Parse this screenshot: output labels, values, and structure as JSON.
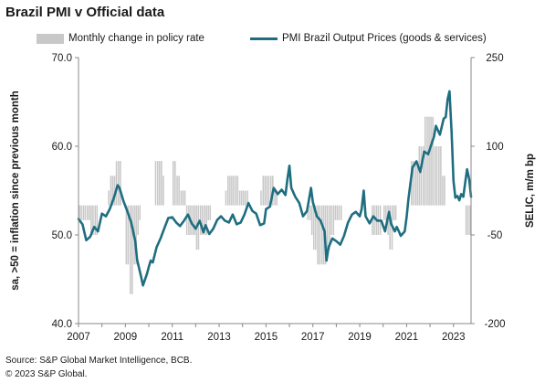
{
  "chart_data": {
    "type": "line",
    "title": "Brazil PMI v Official data",
    "legend": {
      "bars_label": "Monthly change in policy rate",
      "line_label": "PMI Brazil Output Prices (goods & services)"
    },
    "ylabel_left": "sa, >50 = inflation since previous month",
    "ylabel_right": "SELIC, m/m bp",
    "x_range": [
      2007.0,
      2023.75
    ],
    "x_ticks": [
      "2007",
      "2009",
      "2011",
      "2013",
      "2015",
      "2017",
      "2019",
      "2021",
      "2023"
    ],
    "ylim_left": [
      40,
      70
    ],
    "yticks_left": [
      "40.0",
      "50.0",
      "60.0",
      "70.0"
    ],
    "ylim_right": [
      -200,
      250
    ],
    "yticks_right": [
      "-200",
      "-50",
      "100",
      "250"
    ],
    "colors": {
      "line": "#1f6e80",
      "bars": "#c8c8c8",
      "axis": "#888888"
    },
    "line_series": {
      "name": "PMI Brazil Output Prices (goods & services)",
      "points": [
        [
          2007.0,
          51.8
        ],
        [
          2007.17,
          51.2
        ],
        [
          2007.33,
          49.4
        ],
        [
          2007.5,
          49.8
        ],
        [
          2007.67,
          50.9
        ],
        [
          2007.83,
          50.4
        ],
        [
          2008.0,
          52.4
        ],
        [
          2008.17,
          52.1
        ],
        [
          2008.33,
          52.9
        ],
        [
          2008.5,
          54.1
        ],
        [
          2008.67,
          55.6
        ],
        [
          2008.75,
          55.3
        ],
        [
          2008.92,
          53.8
        ],
        [
          2009.08,
          52.7
        ],
        [
          2009.25,
          51.4
        ],
        [
          2009.42,
          49.3
        ],
        [
          2009.5,
          47.2
        ],
        [
          2009.67,
          45.3
        ],
        [
          2009.75,
          44.3
        ],
        [
          2009.92,
          45.6
        ],
        [
          2010.0,
          46.4
        ],
        [
          2010.08,
          47.1
        ],
        [
          2010.17,
          46.9
        ],
        [
          2010.33,
          48.6
        ],
        [
          2010.5,
          49.6
        ],
        [
          2010.67,
          50.8
        ],
        [
          2010.83,
          51.9
        ],
        [
          2011.0,
          52.0
        ],
        [
          2011.17,
          51.4
        ],
        [
          2011.33,
          51.0
        ],
        [
          2011.5,
          51.6
        ],
        [
          2011.67,
          52.3
        ],
        [
          2011.83,
          51.3
        ],
        [
          2012.0,
          50.7
        ],
        [
          2012.17,
          51.6
        ],
        [
          2012.33,
          50.3
        ],
        [
          2012.42,
          51.1
        ],
        [
          2012.58,
          50.1
        ],
        [
          2012.75,
          50.7
        ],
        [
          2012.92,
          51.7
        ],
        [
          2013.08,
          52.1
        ],
        [
          2013.25,
          51.6
        ],
        [
          2013.42,
          51.4
        ],
        [
          2013.58,
          52.3
        ],
        [
          2013.75,
          51.2
        ],
        [
          2013.92,
          51.4
        ],
        [
          2014.08,
          52.3
        ],
        [
          2014.25,
          53.6
        ],
        [
          2014.42,
          52.7
        ],
        [
          2014.58,
          52.4
        ],
        [
          2014.75,
          51.1
        ],
        [
          2014.92,
          51.3
        ],
        [
          2015.0,
          52.9
        ],
        [
          2015.17,
          53.2
        ],
        [
          2015.33,
          55.3
        ],
        [
          2015.5,
          54.6
        ],
        [
          2015.67,
          55.1
        ],
        [
          2015.83,
          54.5
        ],
        [
          2015.92,
          56.4
        ],
        [
          2016.0,
          57.8
        ],
        [
          2016.08,
          55.3
        ],
        [
          2016.25,
          54.3
        ],
        [
          2016.42,
          53.6
        ],
        [
          2016.58,
          52.1
        ],
        [
          2016.75,
          52.7
        ],
        [
          2016.92,
          55.3
        ],
        [
          2017.0,
          53.7
        ],
        [
          2017.17,
          52.1
        ],
        [
          2017.33,
          51.6
        ],
        [
          2017.5,
          50.4
        ],
        [
          2017.58,
          47.1
        ],
        [
          2017.67,
          48.6
        ],
        [
          2017.83,
          49.6
        ],
        [
          2018.0,
          49.3
        ],
        [
          2018.17,
          48.9
        ],
        [
          2018.33,
          49.9
        ],
        [
          2018.5,
          51.4
        ],
        [
          2018.67,
          52.3
        ],
        [
          2018.83,
          52.6
        ],
        [
          2019.0,
          52.1
        ],
        [
          2019.08,
          52.9
        ],
        [
          2019.17,
          55.0
        ],
        [
          2019.25,
          52.1
        ],
        [
          2019.42,
          51.3
        ],
        [
          2019.58,
          52.1
        ],
        [
          2019.75,
          51.6
        ],
        [
          2019.92,
          51.6
        ],
        [
          2020.08,
          50.4
        ],
        [
          2020.25,
          52.6
        ],
        [
          2020.33,
          51.3
        ],
        [
          2020.5,
          50.4
        ],
        [
          2020.58,
          50.9
        ],
        [
          2020.67,
          50.4
        ],
        [
          2020.75,
          49.9
        ],
        [
          2020.92,
          50.4
        ],
        [
          2021.0,
          52.0
        ],
        [
          2021.08,
          54.1
        ],
        [
          2021.25,
          57.6
        ],
        [
          2021.42,
          58.3
        ],
        [
          2021.58,
          57.1
        ],
        [
          2021.75,
          59.4
        ],
        [
          2021.92,
          59.1
        ],
        [
          2022.08,
          60.4
        ],
        [
          2022.17,
          61.1
        ],
        [
          2022.25,
          62.3
        ],
        [
          2022.42,
          61.3
        ],
        [
          2022.58,
          63.1
        ],
        [
          2022.67,
          63.3
        ],
        [
          2022.75,
          65.3
        ],
        [
          2022.83,
          66.2
        ],
        [
          2022.92,
          61.6
        ],
        [
          2023.0,
          56.1
        ],
        [
          2023.08,
          54.2
        ],
        [
          2023.17,
          54.4
        ],
        [
          2023.25,
          53.9
        ],
        [
          2023.33,
          54.6
        ],
        [
          2023.42,
          54.3
        ],
        [
          2023.5,
          55.9
        ],
        [
          2023.58,
          57.4
        ],
        [
          2023.67,
          56.3
        ],
        [
          2023.75,
          54.3
        ]
      ]
    },
    "bar_series": {
      "name": "Monthly change in policy rate",
      "points": [
        [
          2007.04,
          -25
        ],
        [
          2007.12,
          -25
        ],
        [
          2007.21,
          -25
        ],
        [
          2007.29,
          -25
        ],
        [
          2007.38,
          -25
        ],
        [
          2007.46,
          -25
        ],
        [
          2007.54,
          -50
        ],
        [
          2007.62,
          -50
        ],
        [
          2007.71,
          -50
        ],
        [
          2007.79,
          -50
        ],
        [
          2008.29,
          25
        ],
        [
          2008.38,
          50
        ],
        [
          2008.46,
          50
        ],
        [
          2008.54,
          50
        ],
        [
          2008.62,
          75
        ],
        [
          2008.71,
          75
        ],
        [
          2008.79,
          75
        ],
        [
          2009.04,
          -100
        ],
        [
          2009.12,
          -100
        ],
        [
          2009.21,
          -150
        ],
        [
          2009.29,
          -150
        ],
        [
          2009.38,
          -100
        ],
        [
          2009.46,
          -100
        ],
        [
          2009.54,
          -50
        ],
        [
          2009.62,
          -25
        ],
        [
          2010.29,
          75
        ],
        [
          2010.38,
          75
        ],
        [
          2010.46,
          75
        ],
        [
          2010.54,
          75
        ],
        [
          2010.62,
          50
        ],
        [
          2011.04,
          75
        ],
        [
          2011.12,
          75
        ],
        [
          2011.21,
          50
        ],
        [
          2011.29,
          50
        ],
        [
          2011.38,
          25
        ],
        [
          2011.46,
          25
        ],
        [
          2011.54,
          25
        ],
        [
          2011.62,
          -50
        ],
        [
          2011.71,
          -50
        ],
        [
          2011.79,
          -50
        ],
        [
          2011.88,
          -50
        ],
        [
          2011.96,
          -50
        ],
        [
          2012.04,
          -75
        ],
        [
          2012.12,
          -75
        ],
        [
          2012.21,
          -50
        ],
        [
          2012.29,
          -50
        ],
        [
          2012.38,
          -50
        ],
        [
          2012.46,
          -50
        ],
        [
          2012.54,
          -25
        ],
        [
          2012.62,
          -25
        ],
        [
          2013.29,
          25
        ],
        [
          2013.38,
          50
        ],
        [
          2013.46,
          50
        ],
        [
          2013.54,
          50
        ],
        [
          2013.62,
          50
        ],
        [
          2013.71,
          50
        ],
        [
          2013.79,
          50
        ],
        [
          2013.88,
          25
        ],
        [
          2013.96,
          25
        ],
        [
          2014.04,
          25
        ],
        [
          2014.12,
          25
        ],
        [
          2014.21,
          25
        ],
        [
          2014.79,
          25
        ],
        [
          2014.88,
          50
        ],
        [
          2014.96,
          50
        ],
        [
          2015.04,
          50
        ],
        [
          2015.12,
          50
        ],
        [
          2015.21,
          50
        ],
        [
          2015.29,
          50
        ],
        [
          2015.38,
          25
        ],
        [
          2015.46,
          25
        ],
        [
          2016.79,
          -25
        ],
        [
          2016.88,
          -25
        ],
        [
          2016.96,
          -50
        ],
        [
          2017.04,
          -75
        ],
        [
          2017.12,
          -75
        ],
        [
          2017.21,
          -100
        ],
        [
          2017.29,
          -100
        ],
        [
          2017.38,
          -100
        ],
        [
          2017.46,
          -100
        ],
        [
          2017.54,
          -100
        ],
        [
          2017.62,
          -75
        ],
        [
          2017.71,
          -75
        ],
        [
          2017.79,
          -50
        ],
        [
          2017.88,
          -50
        ],
        [
          2017.96,
          -25
        ],
        [
          2018.04,
          -25
        ],
        [
          2018.12,
          -25
        ],
        [
          2018.21,
          -25
        ],
        [
          2019.54,
          -50
        ],
        [
          2019.62,
          -50
        ],
        [
          2019.71,
          -50
        ],
        [
          2019.79,
          -50
        ],
        [
          2019.88,
          -50
        ],
        [
          2020.04,
          -25
        ],
        [
          2020.12,
          -25
        ],
        [
          2020.21,
          -50
        ],
        [
          2020.29,
          -75
        ],
        [
          2020.38,
          -75
        ],
        [
          2020.46,
          -25
        ],
        [
          2020.54,
          -25
        ],
        [
          2021.21,
          75
        ],
        [
          2021.29,
          75
        ],
        [
          2021.38,
          75
        ],
        [
          2021.46,
          75
        ],
        [
          2021.54,
          100
        ],
        [
          2021.62,
          100
        ],
        [
          2021.71,
          100
        ],
        [
          2021.79,
          150
        ],
        [
          2021.88,
          150
        ],
        [
          2021.96,
          150
        ],
        [
          2022.04,
          150
        ],
        [
          2022.12,
          150
        ],
        [
          2022.21,
          100
        ],
        [
          2022.29,
          100
        ],
        [
          2022.38,
          100
        ],
        [
          2022.46,
          100
        ],
        [
          2022.54,
          50
        ],
        [
          2022.62,
          50
        ],
        [
          2023.54,
          -50
        ],
        [
          2023.62,
          -50
        ],
        [
          2023.71,
          -50
        ]
      ]
    }
  },
  "footer": {
    "source": "Source: S&P Global Market Intelligence, BCB.",
    "copyright": "© 2023 S&P Global."
  }
}
